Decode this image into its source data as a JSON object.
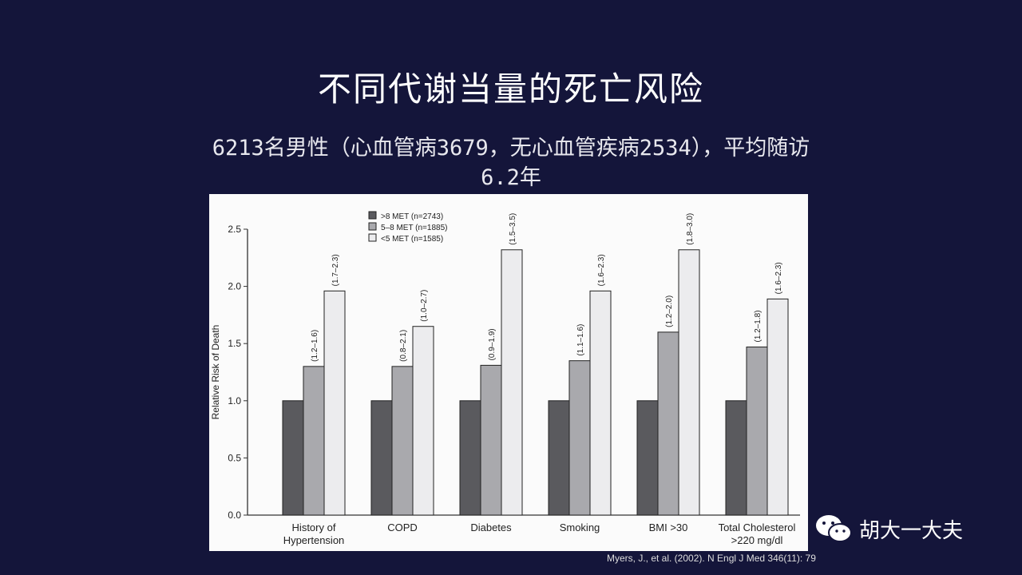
{
  "slide": {
    "title": "不同代谢当量的死亡风险",
    "subtitle_line1": "6213名男性（心血管病3679，无心血管疾病2534），平均随访",
    "subtitle_line2": "6.2年",
    "citation": "Myers, J., et al. (2002). N Engl J Med 346(11): 79",
    "watermark": "胡大一大夫"
  },
  "chart_data": {
    "type": "bar",
    "ylabel": "Relative Risk of Death",
    "ylim": [
      0,
      2.5
    ],
    "yticks": [
      "0.0",
      "0.5",
      "1.0",
      "1.5",
      "2.0",
      "2.5"
    ],
    "categories": [
      "History of\nHypertension",
      "COPD",
      "Diabetes",
      "Smoking",
      "BMI >30",
      "Total Cholesterol\n>220 mg/dl"
    ],
    "legend_position": "top-center",
    "series": [
      {
        "name": ">8 MET (n=2743)",
        "color": "#5a5a5e",
        "values": [
          1.0,
          1.0,
          1.0,
          1.0,
          1.0,
          1.0
        ],
        "ci": [
          "",
          "",
          "",
          "",
          "",
          ""
        ]
      },
      {
        "name": "5–8 MET (n=1885)",
        "color": "#a9a9ad",
        "values": [
          1.3,
          1.3,
          1.31,
          1.35,
          1.6,
          1.47
        ],
        "ci": [
          "(1.2–1.6)",
          "(0.8–2.1)",
          "(0.9–1.9)",
          "(1.1–1.6)",
          "(1.2–2.0)",
          "(1.2–1.8)"
        ]
      },
      {
        "name": "<5 MET (n=1585)",
        "color": "#ececee",
        "values": [
          1.96,
          1.65,
          2.32,
          1.96,
          2.32,
          1.89
        ],
        "ci": [
          "(1.7–2.3)",
          "(1.0–2.7)",
          "(1.5–3.5)",
          "(1.6–2.3)",
          "(1.8–3.0)",
          "(1.6–2.3)"
        ]
      }
    ]
  }
}
